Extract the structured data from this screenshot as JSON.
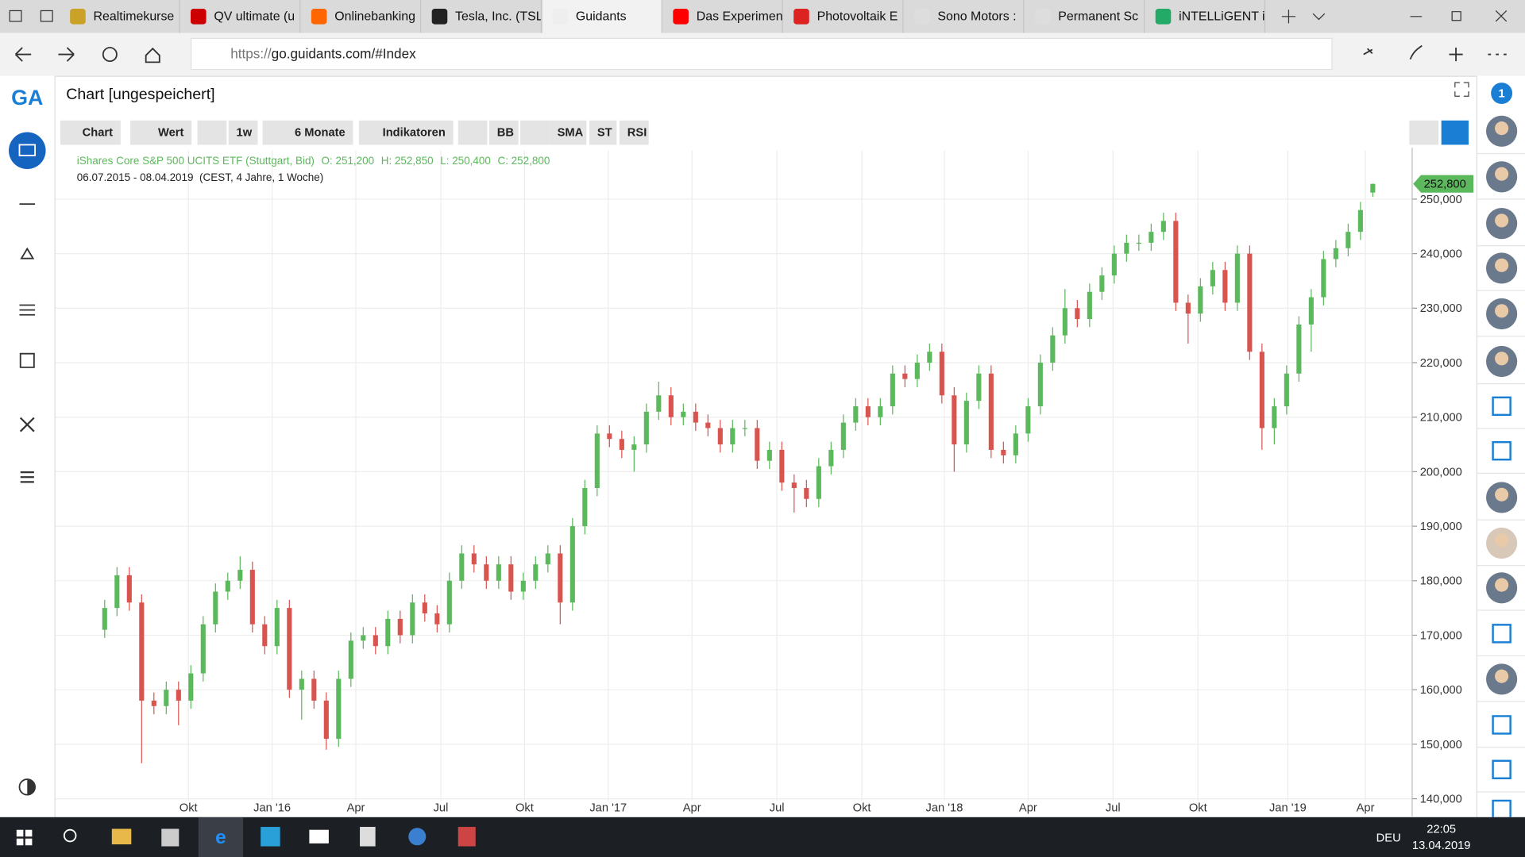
{
  "browser": {
    "tabs": [
      "Realtimekurse",
      "QV ultimate (u",
      "Onlinebanking",
      "Tesla, Inc. (TSL",
      "Guidants",
      "Das Experimen",
      "Photovoltaik E",
      "Sono Motors :",
      "Permanent Sc",
      "iNTELLiGENT i"
    ],
    "url_scheme": "https://",
    "url_rest": "go.guidants.com/#Index"
  },
  "toolbar": {
    "buttons": [
      "Chart",
      "Wert",
      "1w",
      "6 Monate",
      "Indikatoren",
      "BB",
      "SMA",
      "ST",
      "RSI"
    ]
  },
  "sidebar": {
    "badge": "1"
  },
  "taskbar": {
    "language": "DEU",
    "time": "22:05",
    "date": "13.04.2019"
  },
  "chart_data": {
    "type": "candlestick",
    "title": "Chart [ungespeichert]",
    "instrument": "iShares Core S&P 500 UCITS ETF (Stuttgart, Bid)",
    "ohlc_labels": [
      "O: 251,200",
      "H: 252,850",
      "L: 250,400",
      "C: 252,800"
    ],
    "range": "06.07.2015 - 08.04.2019",
    "range_note": "(CEST, 4 Jahre, 1 Woche)",
    "last_price_label": "252,800",
    "up_color": "#5cb85c",
    "down_color": "#d9534f",
    "grid": true,
    "open": [
      171,
      175,
      181,
      176,
      158,
      157,
      160,
      158,
      163,
      172,
      178,
      180,
      182,
      172,
      168,
      175,
      160,
      162,
      158,
      151,
      162,
      169,
      170,
      168,
      173,
      170,
      176,
      174,
      172,
      180,
      185,
      183,
      180,
      183,
      178,
      180,
      183,
      185,
      176,
      190,
      197,
      207,
      206,
      204,
      205,
      211,
      214,
      210,
      211,
      209,
      208,
      205,
      208,
      208,
      202,
      204,
      198,
      197,
      195,
      201,
      204,
      209,
      212,
      210,
      212,
      218,
      217,
      220,
      222,
      214,
      205,
      213,
      218,
      204,
      203,
      207,
      212,
      220,
      225,
      230,
      228,
      233,
      236,
      240,
      242,
      242,
      244,
      246,
      231,
      229,
      234,
      237,
      231,
      240,
      222,
      208,
      212,
      218,
      227,
      232,
      239,
      241,
      244,
      251.2
    ],
    "high": [
      176.5,
      182.5,
      182.5,
      177.5,
      159.5,
      161.5,
      161.5,
      164.5,
      173.5,
      179.5,
      181.5,
      184.5,
      183.5,
      173.5,
      176.5,
      176.5,
      163.5,
      163.5,
      159.5,
      163.5,
      170.5,
      171.5,
      171.5,
      174.5,
      174.5,
      177.5,
      177.5,
      175.5,
      181.5,
      186.5,
      186.5,
      184.5,
      184.5,
      184.5,
      181.5,
      184.5,
      186.5,
      186.5,
      191.5,
      198.5,
      208.5,
      208.5,
      207.5,
      206.5,
      212.5,
      216.5,
      215.5,
      212.5,
      212.5,
      210.5,
      209.5,
      209.5,
      209.5,
      209.5,
      205.5,
      205.5,
      199.5,
      198.5,
      202.5,
      205.5,
      210.5,
      213.5,
      213.5,
      213.5,
      219.5,
      219.5,
      221.5,
      223.5,
      223.5,
      215.5,
      214.5,
      219.5,
      219.5,
      205.5,
      208.5,
      213.5,
      221.5,
      226.5,
      233.5,
      231.5,
      234.5,
      237.5,
      241.5,
      243.5,
      243.5,
      245.5,
      247.5,
      247.5,
      232.5,
      235.5,
      238.5,
      238.5,
      241.5,
      241.5,
      223.5,
      213.5,
      219.5,
      228.5,
      233.5,
      240.5,
      242.5,
      245.5,
      249.5,
      252.85
    ],
    "low": [
      169.5,
      173.5,
      174.5,
      146.5,
      155.5,
      155.5,
      153.5,
      156.5,
      161.5,
      170.5,
      176.5,
      178.5,
      170.5,
      166.5,
      166.5,
      158.5,
      154.5,
      156.5,
      149,
      149.5,
      160.5,
      167.5,
      166.5,
      166.5,
      168.5,
      168.5,
      172.5,
      170.5,
      170.5,
      178.5,
      181.5,
      178.5,
      178.5,
      176.5,
      176.5,
      178.5,
      181.5,
      172,
      174.5,
      188.5,
      195.5,
      204.5,
      202.5,
      200,
      203.5,
      209.5,
      208.5,
      208.5,
      207.5,
      206.5,
      203.5,
      203.5,
      206.5,
      200.5,
      200.5,
      196.5,
      192.5,
      193.5,
      193.5,
      199.5,
      202.5,
      207.5,
      208.5,
      208.5,
      210.5,
      215.5,
      215.5,
      218.5,
      212.5,
      200,
      203.5,
      211.5,
      202.5,
      201.5,
      201.5,
      205.5,
      210.5,
      218.5,
      223.5,
      226.5,
      226.5,
      231.5,
      234.5,
      238.5,
      240.5,
      240.5,
      242.5,
      229.5,
      223.5,
      227.5,
      232.5,
      229.5,
      229.5,
      220.5,
      204,
      205,
      210.5,
      216.5,
      222,
      230.5,
      237.5,
      239.5,
      242.5,
      250.4
    ],
    "close": [
      175,
      181,
      176,
      158,
      157,
      160,
      158,
      163,
      172,
      178,
      180,
      182,
      172,
      168,
      175,
      160,
      162,
      158,
      151,
      162,
      169,
      170,
      168,
      173,
      170,
      176,
      174,
      172,
      180,
      185,
      183,
      180,
      183,
      178,
      180,
      183,
      185,
      176,
      190,
      197,
      207,
      206,
      204,
      205,
      211,
      214,
      210,
      211,
      209,
      208,
      205,
      208,
      208,
      202,
      204,
      198,
      197,
      195,
      201,
      204,
      209,
      212,
      210,
      212,
      218,
      217,
      220,
      222,
      214,
      205,
      213,
      218,
      204,
      203,
      207,
      212,
      220,
      225,
      230,
      228,
      233,
      236,
      240,
      242,
      242,
      244,
      246,
      231,
      229,
      234,
      237,
      231,
      240,
      222,
      208,
      212,
      218,
      227,
      232,
      239,
      241,
      244,
      248,
      252.8
    ],
    "ylim": [
      136.8,
      258.9
    ],
    "yticks": [
      {
        "value": 140,
        "label": "140,000"
      },
      {
        "value": 150,
        "label": "150,000"
      },
      {
        "value": 160,
        "label": "160,000"
      },
      {
        "value": 170,
        "label": "170,000"
      },
      {
        "value": 180,
        "label": "180,000"
      },
      {
        "value": 190,
        "label": "190,000"
      },
      {
        "value": 200,
        "label": "200,000"
      },
      {
        "value": 210,
        "label": "210,000"
      },
      {
        "value": 220,
        "label": "220,000"
      },
      {
        "value": 230,
        "label": "230,000"
      },
      {
        "value": 240,
        "label": "240,000"
      },
      {
        "value": 250,
        "label": "250,000"
      }
    ],
    "xlim": [
      -4,
      106.2
    ],
    "xticks": [
      {
        "value": 6.8,
        "label": "Okt"
      },
      {
        "value": 13.6,
        "label": "Jan '16"
      },
      {
        "value": 20.4,
        "label": "Apr"
      },
      {
        "value": 27.3,
        "label": "Jul"
      },
      {
        "value": 34.1,
        "label": "Okt"
      },
      {
        "value": 40.9,
        "label": "Jan '17"
      },
      {
        "value": 47.7,
        "label": "Apr"
      },
      {
        "value": 54.6,
        "label": "Jul"
      },
      {
        "value": 61.5,
        "label": "Okt"
      },
      {
        "value": 68.2,
        "label": "Jan '18"
      },
      {
        "value": 75,
        "label": "Apr"
      },
      {
        "value": 81.9,
        "label": "Jul"
      },
      {
        "value": 88.8,
        "label": "Okt"
      },
      {
        "value": 96.1,
        "label": "Jan '19"
      },
      {
        "value": 102.4,
        "label": "Apr"
      }
    ]
  }
}
